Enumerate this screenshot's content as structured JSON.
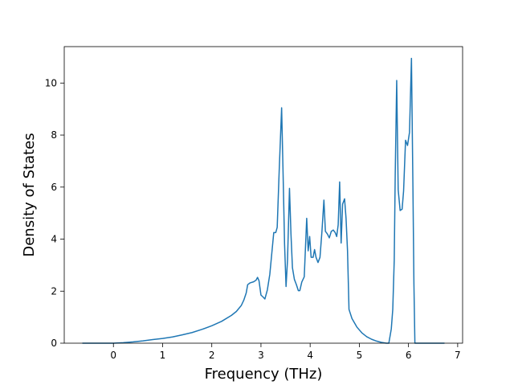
{
  "chart_data": {
    "type": "line",
    "title": "",
    "xlabel": "Frequency (THz)",
    "ylabel": "Density of States",
    "xlim": [
      -1.0,
      7.1
    ],
    "ylim": [
      0,
      11.4
    ],
    "x_ticks": [
      0,
      1,
      2,
      3,
      4,
      5,
      6,
      7
    ],
    "y_ticks": [
      0,
      2,
      4,
      6,
      8,
      10
    ],
    "x_tick_labels": [
      "0",
      "1",
      "2",
      "3",
      "4",
      "5",
      "6",
      "7"
    ],
    "y_tick_labels": [
      "0",
      "2",
      "4",
      "6",
      "8",
      "10"
    ],
    "grid": false,
    "legend": "none",
    "line_color": "#1f77b4",
    "series": [
      {
        "points": [
          [
            -0.62,
            0.0
          ],
          [
            0.0,
            0.0
          ],
          [
            0.2,
            0.02
          ],
          [
            0.4,
            0.05
          ],
          [
            0.6,
            0.09
          ],
          [
            0.8,
            0.14
          ],
          [
            1.0,
            0.18
          ],
          [
            1.2,
            0.24
          ],
          [
            1.4,
            0.32
          ],
          [
            1.6,
            0.41
          ],
          [
            1.8,
            0.53
          ],
          [
            2.0,
            0.67
          ],
          [
            2.2,
            0.84
          ],
          [
            2.4,
            1.07
          ],
          [
            2.5,
            1.22
          ],
          [
            2.6,
            1.45
          ],
          [
            2.65,
            1.65
          ],
          [
            2.7,
            1.93
          ],
          [
            2.73,
            2.25
          ],
          [
            2.78,
            2.32
          ],
          [
            2.85,
            2.36
          ],
          [
            2.9,
            2.42
          ],
          [
            2.93,
            2.53
          ],
          [
            2.96,
            2.4
          ],
          [
            3.0,
            1.85
          ],
          [
            3.04,
            1.78
          ],
          [
            3.08,
            1.7
          ],
          [
            3.13,
            2.05
          ],
          [
            3.18,
            2.65
          ],
          [
            3.22,
            3.45
          ],
          [
            3.26,
            4.25
          ],
          [
            3.3,
            4.25
          ],
          [
            3.33,
            4.45
          ],
          [
            3.37,
            6.6
          ],
          [
            3.42,
            9.05
          ],
          [
            3.45,
            6.5
          ],
          [
            3.48,
            3.8
          ],
          [
            3.51,
            2.18
          ],
          [
            3.54,
            3.2
          ],
          [
            3.58,
            5.95
          ],
          [
            3.61,
            4.2
          ],
          [
            3.64,
            2.9
          ],
          [
            3.68,
            2.45
          ],
          [
            3.72,
            2.25
          ],
          [
            3.76,
            2.02
          ],
          [
            3.79,
            2.02
          ],
          [
            3.83,
            2.35
          ],
          [
            3.88,
            2.55
          ],
          [
            3.93,
            4.8
          ],
          [
            3.96,
            3.55
          ],
          [
            3.99,
            4.1
          ],
          [
            4.02,
            3.3
          ],
          [
            4.06,
            3.3
          ],
          [
            4.09,
            3.6
          ],
          [
            4.12,
            3.3
          ],
          [
            4.16,
            3.1
          ],
          [
            4.2,
            3.3
          ],
          [
            4.24,
            4.3
          ],
          [
            4.28,
            5.5
          ],
          [
            4.31,
            4.3
          ],
          [
            4.35,
            4.2
          ],
          [
            4.39,
            4.05
          ],
          [
            4.43,
            4.3
          ],
          [
            4.47,
            4.35
          ],
          [
            4.51,
            4.25
          ],
          [
            4.54,
            4.1
          ],
          [
            4.57,
            4.55
          ],
          [
            4.6,
            6.2
          ],
          [
            4.63,
            3.85
          ],
          [
            4.66,
            5.35
          ],
          [
            4.7,
            5.55
          ],
          [
            4.73,
            4.8
          ],
          [
            4.76,
            3.55
          ],
          [
            4.79,
            1.3
          ],
          [
            4.85,
            0.95
          ],
          [
            4.95,
            0.62
          ],
          [
            5.05,
            0.4
          ],
          [
            5.15,
            0.25
          ],
          [
            5.25,
            0.15
          ],
          [
            5.35,
            0.08
          ],
          [
            5.45,
            0.03
          ],
          [
            5.55,
            0.0
          ],
          [
            5.6,
            0.0
          ],
          [
            5.65,
            0.55
          ],
          [
            5.68,
            1.3
          ],
          [
            5.71,
            3.2
          ],
          [
            5.73,
            6.5
          ],
          [
            5.76,
            10.1
          ],
          [
            5.79,
            5.9
          ],
          [
            5.83,
            5.1
          ],
          [
            5.87,
            5.15
          ],
          [
            5.9,
            5.85
          ],
          [
            5.94,
            7.8
          ],
          [
            5.98,
            7.6
          ],
          [
            6.02,
            8.1
          ],
          [
            6.06,
            10.95
          ],
          [
            6.09,
            6.0
          ],
          [
            6.11,
            2.3
          ],
          [
            6.13,
            0.0
          ],
          [
            6.5,
            0.0
          ],
          [
            6.72,
            0.0
          ]
        ]
      }
    ]
  }
}
